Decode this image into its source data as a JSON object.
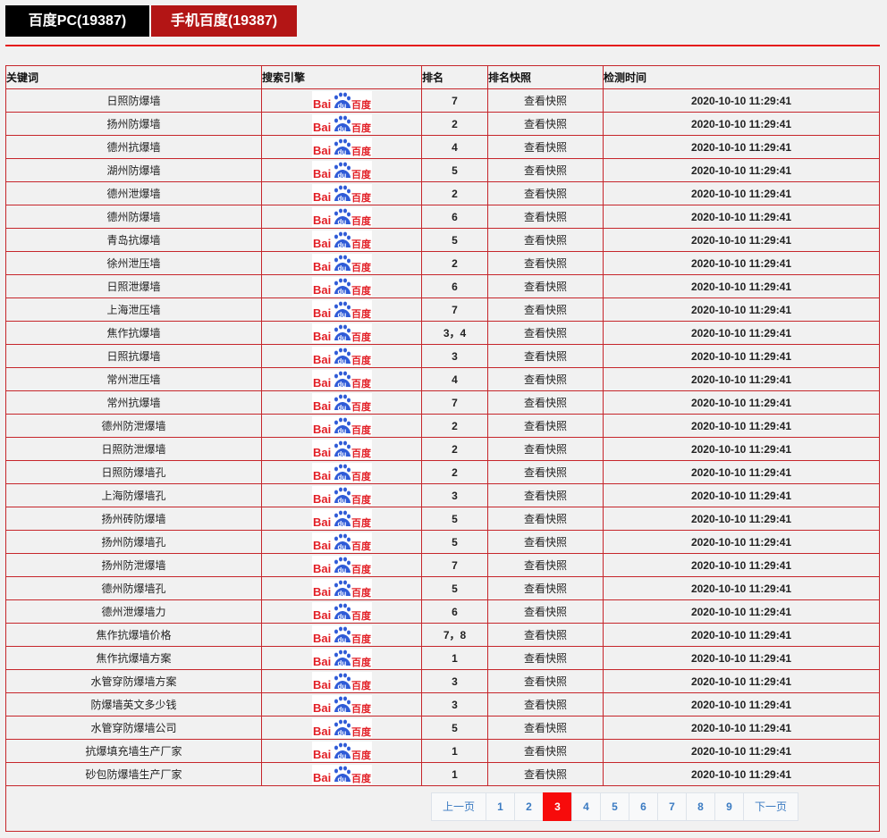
{
  "tabs": [
    {
      "label": "百度PC(19387)"
    },
    {
      "label": "手机百度(19387)"
    }
  ],
  "table": {
    "headers": [
      "关键词",
      "搜索引擎",
      "排名",
      "排名快照",
      "检测时间"
    ],
    "engine_logo": "Bai du 百度",
    "rows": [
      {
        "keyword": "日照防爆墙",
        "rank": "7",
        "snapshot": "查看快照",
        "time": "2020-10-10 11:29:41"
      },
      {
        "keyword": "扬州防爆墙",
        "rank": "2",
        "snapshot": "查看快照",
        "time": "2020-10-10 11:29:41"
      },
      {
        "keyword": "德州抗爆墙",
        "rank": "4",
        "snapshot": "查看快照",
        "time": "2020-10-10 11:29:41"
      },
      {
        "keyword": "湖州防爆墙",
        "rank": "5",
        "snapshot": "查看快照",
        "time": "2020-10-10 11:29:41"
      },
      {
        "keyword": "德州泄爆墙",
        "rank": "2",
        "snapshot": "查看快照",
        "time": "2020-10-10 11:29:41"
      },
      {
        "keyword": "德州防爆墙",
        "rank": "6",
        "snapshot": "查看快照",
        "time": "2020-10-10 11:29:41"
      },
      {
        "keyword": "青岛抗爆墙",
        "rank": "5",
        "snapshot": "查看快照",
        "time": "2020-10-10 11:29:41"
      },
      {
        "keyword": "徐州泄压墙",
        "rank": "2",
        "snapshot": "查看快照",
        "time": "2020-10-10 11:29:41"
      },
      {
        "keyword": "日照泄爆墙",
        "rank": "6",
        "snapshot": "查看快照",
        "time": "2020-10-10 11:29:41"
      },
      {
        "keyword": "上海泄压墙",
        "rank": "7",
        "snapshot": "查看快照",
        "time": "2020-10-10 11:29:41"
      },
      {
        "keyword": "焦作抗爆墙",
        "rank": "3，4",
        "snapshot": "查看快照",
        "time": "2020-10-10 11:29:41"
      },
      {
        "keyword": "日照抗爆墙",
        "rank": "3",
        "snapshot": "查看快照",
        "time": "2020-10-10 11:29:41"
      },
      {
        "keyword": "常州泄压墙",
        "rank": "4",
        "snapshot": "查看快照",
        "time": "2020-10-10 11:29:41"
      },
      {
        "keyword": "常州抗爆墙",
        "rank": "7",
        "snapshot": "查看快照",
        "time": "2020-10-10 11:29:41"
      },
      {
        "keyword": "德州防泄爆墙",
        "rank": "2",
        "snapshot": "查看快照",
        "time": "2020-10-10 11:29:41"
      },
      {
        "keyword": "日照防泄爆墙",
        "rank": "2",
        "snapshot": "查看快照",
        "time": "2020-10-10 11:29:41"
      },
      {
        "keyword": "日照防爆墙孔",
        "rank": "2",
        "snapshot": "查看快照",
        "time": "2020-10-10 11:29:41"
      },
      {
        "keyword": "上海防爆墙孔",
        "rank": "3",
        "snapshot": "查看快照",
        "time": "2020-10-10 11:29:41"
      },
      {
        "keyword": "扬州砖防爆墙",
        "rank": "5",
        "snapshot": "查看快照",
        "time": "2020-10-10 11:29:41"
      },
      {
        "keyword": "扬州防爆墙孔",
        "rank": "5",
        "snapshot": "查看快照",
        "time": "2020-10-10 11:29:41"
      },
      {
        "keyword": "扬州防泄爆墙",
        "rank": "7",
        "snapshot": "查看快照",
        "time": "2020-10-10 11:29:41"
      },
      {
        "keyword": "德州防爆墙孔",
        "rank": "5",
        "snapshot": "查看快照",
        "time": "2020-10-10 11:29:41"
      },
      {
        "keyword": "德州泄爆墙力",
        "rank": "6",
        "snapshot": "查看快照",
        "time": "2020-10-10 11:29:41"
      },
      {
        "keyword": "焦作抗爆墙价格",
        "rank": "7，8",
        "snapshot": "查看快照",
        "time": "2020-10-10 11:29:41"
      },
      {
        "keyword": "焦作抗爆墙方案",
        "rank": "1",
        "snapshot": "查看快照",
        "time": "2020-10-10 11:29:41"
      },
      {
        "keyword": "水管穿防爆墙方案",
        "rank": "3",
        "snapshot": "查看快照",
        "time": "2020-10-10 11:29:41"
      },
      {
        "keyword": "防爆墙英文多少钱",
        "rank": "3",
        "snapshot": "查看快照",
        "time": "2020-10-10 11:29:41"
      },
      {
        "keyword": "水管穿防爆墙公司",
        "rank": "5",
        "snapshot": "查看快照",
        "time": "2020-10-10 11:29:41"
      },
      {
        "keyword": "抗爆填充墙生产厂家",
        "rank": "1",
        "snapshot": "查看快照",
        "time": "2020-10-10 11:29:41"
      },
      {
        "keyword": "砂包防爆墙生产厂家",
        "rank": "1",
        "snapshot": "查看快照",
        "time": "2020-10-10 11:29:41"
      }
    ]
  },
  "pagination": {
    "prev": "上一页",
    "next": "下一页",
    "pages": [
      "1",
      "2",
      "3",
      "4",
      "5",
      "6",
      "7",
      "8",
      "9"
    ],
    "current": "3"
  },
  "colors": {
    "accent": "#e51b1b",
    "tab_active": "#b31515",
    "current_page": "#f70b0b",
    "link": "#3b7bc2"
  }
}
